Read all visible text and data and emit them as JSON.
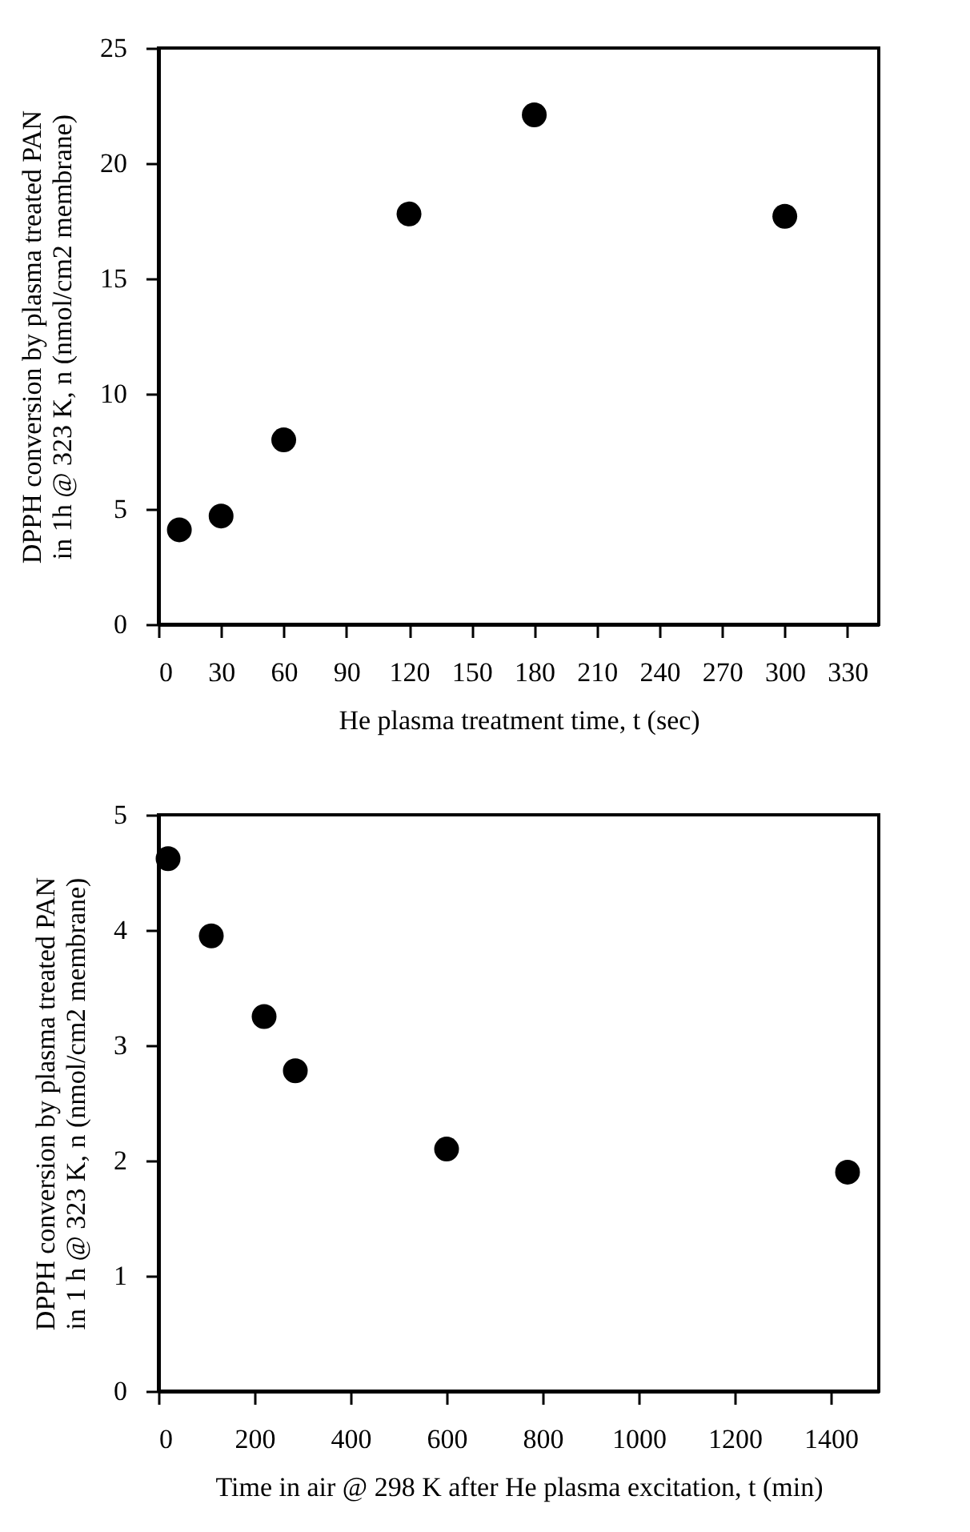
{
  "chart_data": [
    {
      "type": "scatter",
      "xlabel": "He plasma treatment time, t (sec)",
      "ylabel": "DPPH conversion by plasma treated PAN\nin 1h @ 323 K, n (nmol/cm2 membrane)",
      "x": [
        10,
        30,
        60,
        120,
        180,
        300
      ],
      "series": [
        {
          "color": "#000000",
          "values": [
            4.1,
            4.7,
            8.0,
            17.8,
            22.1,
            17.7
          ]
        }
      ],
      "xlim": [
        0,
        345
      ],
      "xticks": [
        0,
        30,
        60,
        90,
        120,
        150,
        180,
        210,
        240,
        270,
        300,
        330
      ],
      "ylim": [
        0,
        25
      ],
      "yticks": [
        0,
        5,
        10,
        15,
        20,
        25
      ],
      "marker": "circle",
      "grid": false,
      "legend": false
    },
    {
      "type": "scatter",
      "xlabel": "Time in air @ 298 K after He plasma excitation, t (min)",
      "ylabel": "DPPH conversion by plasma treated PAN\nin 1 h @ 323 K, n (nmol/cm2 membrane)",
      "x": [
        20,
        110,
        220,
        285,
        600,
        1435
      ],
      "series": [
        {
          "color": "#000000",
          "values": [
            4.62,
            3.95,
            3.25,
            2.78,
            2.1,
            1.9
          ]
        }
      ],
      "xlim": [
        0,
        1500
      ],
      "xticks": [
        0,
        200,
        400,
        600,
        800,
        1000,
        1200,
        1400
      ],
      "ylim": [
        0,
        5
      ],
      "yticks": [
        0,
        1,
        2,
        3,
        4,
        5
      ],
      "marker": "circle",
      "grid": false,
      "legend": false
    }
  ]
}
